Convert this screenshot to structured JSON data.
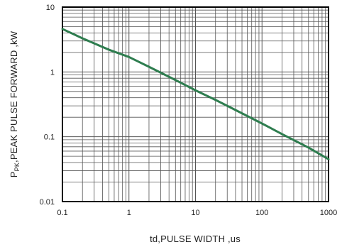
{
  "chart_data": {
    "type": "line",
    "xscale": "log",
    "yscale": "log",
    "xlim": [
      0.1,
      1000
    ],
    "ylim": [
      0.01,
      10
    ],
    "grid": true,
    "xlabel": "td,PULSE WIDTH ,us",
    "ylabel_sub": "PK",
    "ylabel_main_prefix": "P",
    "ylabel_main_rest": ",PEAK PULSE  FORWARD ,kW",
    "x_ticks": [
      {
        "value": 0.1,
        "label": "0.1"
      },
      {
        "value": 1,
        "label": "1"
      },
      {
        "value": 10,
        "label": "10"
      },
      {
        "value": 100,
        "label": "100"
      },
      {
        "value": 1000,
        "label": "1000"
      }
    ],
    "y_ticks": [
      {
        "value": 0.01,
        "label": "0.01"
      },
      {
        "value": 0.1,
        "label": "0.1"
      },
      {
        "value": 1,
        "label": "1"
      },
      {
        "value": 10,
        "label": "10"
      }
    ],
    "series": [
      {
        "x": [
          0.1,
          0.2,
          0.5,
          1,
          2,
          5,
          10,
          20,
          50,
          100,
          200,
          500,
          1000
        ],
        "y": [
          4.6,
          3.3,
          2.2,
          1.7,
          1.2,
          0.75,
          0.52,
          0.37,
          0.23,
          0.16,
          0.11,
          0.068,
          0.045
        ]
      }
    ],
    "colors": {
      "line": "#2e7d4f",
      "grid": "#555555",
      "frame": "#000000"
    }
  }
}
